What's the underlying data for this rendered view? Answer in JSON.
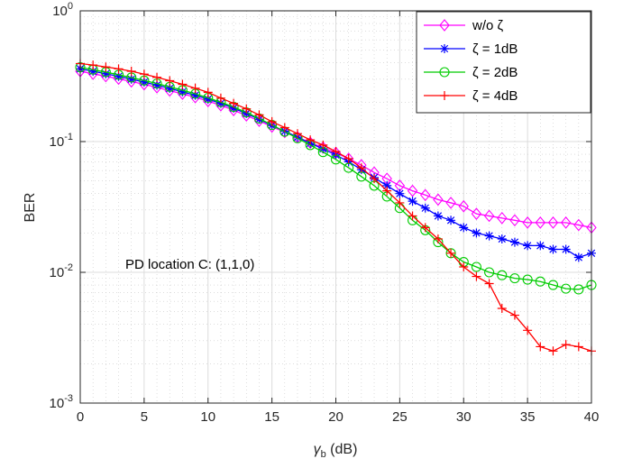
{
  "chart_data": {
    "type": "line",
    "xlabel_base": "γ",
    "xlabel_sub": "b",
    "xlabel_unit": " (dB)",
    "ylabel": "BER",
    "y_scale": "log",
    "xlim": [
      0,
      40
    ],
    "ylim": [
      0.001,
      1
    ],
    "x_ticks": [
      "0",
      "5",
      "10",
      "15",
      "20",
      "25",
      "30",
      "35",
      "40"
    ],
    "y_ticks": [
      {
        "base": "10",
        "exp": "0"
      },
      {
        "base": "10",
        "exp": "-1"
      },
      {
        "base": "10",
        "exp": "-2"
      },
      {
        "base": "10",
        "exp": "-3"
      }
    ],
    "grid": true,
    "minor_grid": true,
    "legend_position": "top-right",
    "annotation": "PD location C: (1,1,0)",
    "x": [
      0,
      1,
      2,
      3,
      4,
      5,
      6,
      7,
      8,
      9,
      10,
      11,
      12,
      13,
      14,
      15,
      16,
      17,
      18,
      19,
      20,
      21,
      22,
      23,
      24,
      25,
      26,
      27,
      28,
      29,
      30,
      31,
      32,
      33,
      34,
      35,
      36,
      37,
      38,
      39,
      40
    ],
    "series": [
      {
        "name": "w/o ζ",
        "color": "#ff00ff",
        "marker": "diamond",
        "values": [
          0.345,
          0.33,
          0.316,
          0.302,
          0.288,
          0.274,
          0.26,
          0.245,
          0.232,
          0.218,
          0.204,
          0.189,
          0.174,
          0.158,
          0.144,
          0.13,
          0.118,
          0.108,
          0.098,
          0.09,
          0.082,
          0.074,
          0.066,
          0.058,
          0.052,
          0.046,
          0.042,
          0.039,
          0.036,
          0.034,
          0.032,
          0.028,
          0.027,
          0.026,
          0.025,
          0.024,
          0.024,
          0.024,
          0.024,
          0.023,
          0.022
        ]
      },
      {
        "name": "ζ = 1dB",
        "color": "#0000ff",
        "marker": "asterisk",
        "values": [
          0.36,
          0.345,
          0.33,
          0.315,
          0.3,
          0.285,
          0.27,
          0.255,
          0.24,
          0.226,
          0.211,
          0.196,
          0.18,
          0.164,
          0.148,
          0.133,
          0.12,
          0.108,
          0.097,
          0.088,
          0.079,
          0.07,
          0.061,
          0.053,
          0.046,
          0.04,
          0.035,
          0.031,
          0.027,
          0.025,
          0.022,
          0.02,
          0.019,
          0.018,
          0.017,
          0.016,
          0.016,
          0.015,
          0.015,
          0.013,
          0.014
        ]
      },
      {
        "name": "ζ = 2dB",
        "color": "#00cc00",
        "marker": "circle",
        "values": [
          0.37,
          0.355,
          0.34,
          0.324,
          0.309,
          0.293,
          0.278,
          0.262,
          0.247,
          0.232,
          0.216,
          0.2,
          0.184,
          0.167,
          0.15,
          0.134,
          0.119,
          0.106,
          0.094,
          0.083,
          0.073,
          0.063,
          0.054,
          0.046,
          0.038,
          0.031,
          0.025,
          0.021,
          0.017,
          0.014,
          0.012,
          0.011,
          0.01,
          0.0095,
          0.009,
          0.0088,
          0.0085,
          0.008,
          0.0075,
          0.0074,
          0.008
        ]
      },
      {
        "name": "ζ = 4dB",
        "color": "#ff0000",
        "marker": "plus",
        "values": [
          0.395,
          0.385,
          0.372,
          0.36,
          0.345,
          0.328,
          0.31,
          0.292,
          0.274,
          0.256,
          0.238,
          0.215,
          0.196,
          0.178,
          0.16,
          0.142,
          0.128,
          0.115,
          0.103,
          0.094,
          0.084,
          0.074,
          0.063,
          0.052,
          0.042,
          0.034,
          0.027,
          0.022,
          0.018,
          0.014,
          0.011,
          0.0093,
          0.0082,
          0.0053,
          0.0047,
          0.0036,
          0.0027,
          0.0025,
          0.0028,
          0.0027,
          0.0025
        ]
      }
    ]
  }
}
